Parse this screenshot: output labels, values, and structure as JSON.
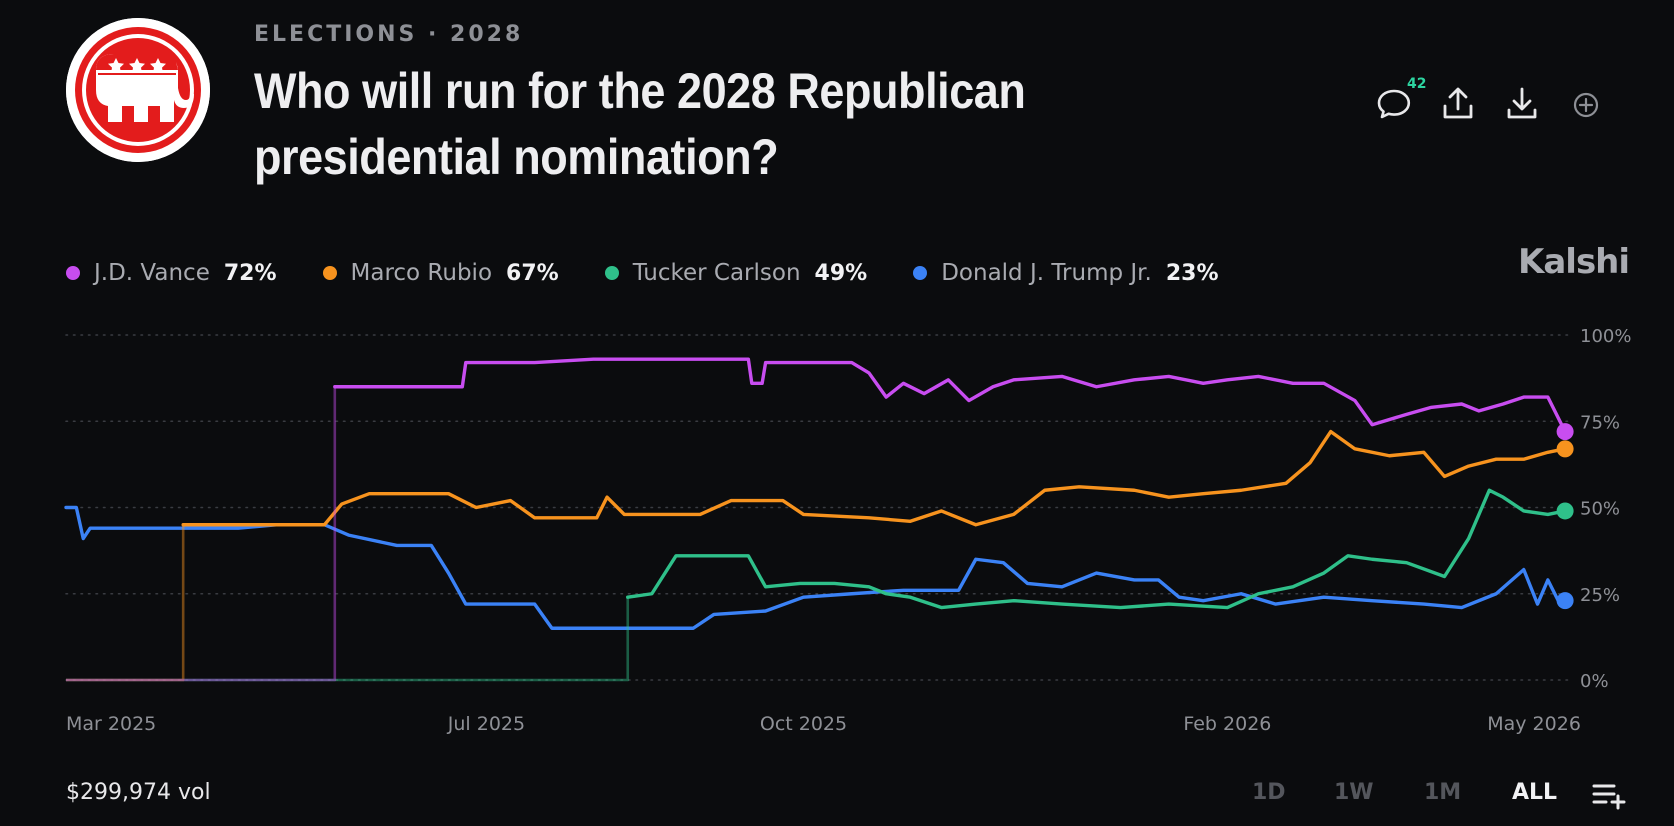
{
  "header": {
    "kicker": "ELECTIONS · 2028",
    "title": "Who will run for the 2028 Republican presidential nomination?",
    "comment_count": "42"
  },
  "icons": [
    "republican-elephant-logo",
    "comment-icon",
    "share-icon",
    "download-icon",
    "add-icon",
    "list-add-icon"
  ],
  "brand": "Kalshi",
  "legend": [
    {
      "name": "J.D. Vance",
      "value": "72%",
      "color": "#c84df0"
    },
    {
      "name": "Marco Rubio",
      "value": "67%",
      "color": "#f7931e"
    },
    {
      "name": "Tucker Carlson",
      "value": "49%",
      "color": "#2fc08a"
    },
    {
      "name": "Donald J. Trump Jr.",
      "value": "23%",
      "color": "#3b82f6"
    }
  ],
  "footer": {
    "volume": "$299,974 vol",
    "ranges": [
      "1D",
      "1W",
      "1M",
      "ALL"
    ],
    "active_range": "ALL"
  },
  "chart_data": {
    "type": "line",
    "y_ticks": [
      "100%",
      "75%",
      "50%",
      "25%",
      "0%"
    ],
    "ylim": [
      0,
      100
    ],
    "x_ticks": [
      {
        "label": "Mar 2025",
        "date": "2025-03-01"
      },
      {
        "label": "Jul 2025",
        "date": "2025-07-01"
      },
      {
        "label": "Oct 2025",
        "date": "2025-10-01"
      },
      {
        "label": "Feb 2026",
        "date": "2026-02-01"
      },
      {
        "label": "May 2026",
        "date": "2026-05-01"
      }
    ],
    "x_range": [
      "2025-03-01",
      "2026-05-12"
    ],
    "grid": true,
    "series": [
      {
        "name": "J.D. Vance",
        "color": "#c84df0",
        "points": [
          [
            "2025-03-01",
            0
          ],
          [
            "2025-05-18",
            0
          ],
          [
            "2025-05-18",
            85
          ],
          [
            "2025-06-24",
            85
          ],
          [
            "2025-06-25",
            92
          ],
          [
            "2025-07-15",
            92
          ],
          [
            "2025-08-01",
            93
          ],
          [
            "2025-09-10",
            93
          ],
          [
            "2025-09-15",
            93
          ],
          [
            "2025-09-16",
            86
          ],
          [
            "2025-09-19",
            86
          ],
          [
            "2025-09-20",
            92
          ],
          [
            "2025-10-15",
            92
          ],
          [
            "2025-10-20",
            89
          ],
          [
            "2025-10-25",
            82
          ],
          [
            "2025-10-30",
            86
          ],
          [
            "2025-11-05",
            83
          ],
          [
            "2025-11-12",
            87
          ],
          [
            "2025-11-18",
            81
          ],
          [
            "2025-11-25",
            85
          ],
          [
            "2025-12-01",
            87
          ],
          [
            "2025-12-15",
            88
          ],
          [
            "2025-12-25",
            85
          ],
          [
            "2026-01-05",
            87
          ],
          [
            "2026-01-15",
            88
          ],
          [
            "2026-01-25",
            86
          ],
          [
            "2026-02-01",
            87
          ],
          [
            "2026-02-10",
            88
          ],
          [
            "2026-02-20",
            86
          ],
          [
            "2026-03-01",
            86
          ],
          [
            "2026-03-10",
            81
          ],
          [
            "2026-03-15",
            74
          ],
          [
            "2026-03-25",
            77
          ],
          [
            "2026-04-01",
            79
          ],
          [
            "2026-04-10",
            80
          ],
          [
            "2026-04-15",
            78
          ],
          [
            "2026-04-22",
            80
          ],
          [
            "2026-04-28",
            82
          ],
          [
            "2026-05-05",
            82
          ],
          [
            "2026-05-10",
            72
          ]
        ]
      },
      {
        "name": "Marco Rubio",
        "color": "#f7931e",
        "points": [
          [
            "2025-03-01",
            0
          ],
          [
            "2025-04-04",
            0
          ],
          [
            "2025-04-04",
            45
          ],
          [
            "2025-05-15",
            45
          ],
          [
            "2025-05-20",
            51
          ],
          [
            "2025-05-28",
            54
          ],
          [
            "2025-06-20",
            54
          ],
          [
            "2025-06-28",
            50
          ],
          [
            "2025-07-08",
            52
          ],
          [
            "2025-07-15",
            47
          ],
          [
            "2025-08-02",
            47
          ],
          [
            "2025-08-05",
            53
          ],
          [
            "2025-08-10",
            48
          ],
          [
            "2025-09-01",
            48
          ],
          [
            "2025-09-10",
            52
          ],
          [
            "2025-09-25",
            52
          ],
          [
            "2025-10-01",
            48
          ],
          [
            "2025-10-20",
            47
          ],
          [
            "2025-11-01",
            46
          ],
          [
            "2025-11-10",
            49
          ],
          [
            "2025-11-20",
            45
          ],
          [
            "2025-12-01",
            48
          ],
          [
            "2025-12-10",
            55
          ],
          [
            "2025-12-20",
            56
          ],
          [
            "2026-01-05",
            55
          ],
          [
            "2026-01-15",
            53
          ],
          [
            "2026-01-25",
            54
          ],
          [
            "2026-02-05",
            55
          ],
          [
            "2026-02-18",
            57
          ],
          [
            "2026-02-25",
            63
          ],
          [
            "2026-03-03",
            72
          ],
          [
            "2026-03-10",
            67
          ],
          [
            "2026-03-20",
            65
          ],
          [
            "2026-03-30",
            66
          ],
          [
            "2026-04-05",
            59
          ],
          [
            "2026-04-12",
            62
          ],
          [
            "2026-04-20",
            64
          ],
          [
            "2026-04-28",
            64
          ],
          [
            "2026-05-05",
            66
          ],
          [
            "2026-05-10",
            67
          ]
        ]
      },
      {
        "name": "Tucker Carlson",
        "color": "#2fc08a",
        "points": [
          [
            "2025-03-01",
            0
          ],
          [
            "2025-08-11",
            0
          ],
          [
            "2025-08-11",
            24
          ],
          [
            "2025-08-18",
            25
          ],
          [
            "2025-08-25",
            36
          ],
          [
            "2025-09-15",
            36
          ],
          [
            "2025-09-20",
            27
          ],
          [
            "2025-09-30",
            28
          ],
          [
            "2025-10-10",
            28
          ],
          [
            "2025-10-20",
            27
          ],
          [
            "2025-10-25",
            25
          ],
          [
            "2025-11-01",
            24
          ],
          [
            "2025-11-10",
            21
          ],
          [
            "2025-11-20",
            22
          ],
          [
            "2025-12-01",
            23
          ],
          [
            "2025-12-15",
            22
          ],
          [
            "2026-01-01",
            21
          ],
          [
            "2026-01-15",
            22
          ],
          [
            "2026-02-01",
            21
          ],
          [
            "2026-02-10",
            25
          ],
          [
            "2026-02-20",
            27
          ],
          [
            "2026-03-01",
            31
          ],
          [
            "2026-03-08",
            36
          ],
          [
            "2026-03-15",
            35
          ],
          [
            "2026-03-25",
            34
          ],
          [
            "2026-04-05",
            30
          ],
          [
            "2026-04-12",
            41
          ],
          [
            "2026-04-18",
            55
          ],
          [
            "2026-04-22",
            53
          ],
          [
            "2026-04-28",
            49
          ],
          [
            "2026-05-05",
            48
          ],
          [
            "2026-05-10",
            49
          ]
        ]
      },
      {
        "name": "Donald J. Trump Jr.",
        "color": "#3b82f6",
        "points": [
          [
            "2025-03-01",
            50
          ],
          [
            "2025-03-04",
            50
          ],
          [
            "2025-03-06",
            41
          ],
          [
            "2025-03-08",
            44
          ],
          [
            "2025-04-20",
            44
          ],
          [
            "2025-05-01",
            45
          ],
          [
            "2025-05-15",
            45
          ],
          [
            "2025-05-22",
            42
          ],
          [
            "2025-06-05",
            39
          ],
          [
            "2025-06-15",
            39
          ],
          [
            "2025-06-20",
            31
          ],
          [
            "2025-06-25",
            22
          ],
          [
            "2025-07-15",
            22
          ],
          [
            "2025-07-20",
            15
          ],
          [
            "2025-08-15",
            15
          ],
          [
            "2025-08-30",
            15
          ],
          [
            "2025-09-05",
            19
          ],
          [
            "2025-09-20",
            20
          ],
          [
            "2025-10-01",
            24
          ],
          [
            "2025-10-15",
            25
          ],
          [
            "2025-10-30",
            26
          ],
          [
            "2025-11-15",
            26
          ],
          [
            "2025-11-20",
            35
          ],
          [
            "2025-11-28",
            34
          ],
          [
            "2025-12-05",
            28
          ],
          [
            "2025-12-15",
            27
          ],
          [
            "2025-12-25",
            31
          ],
          [
            "2026-01-05",
            29
          ],
          [
            "2026-01-12",
            29
          ],
          [
            "2026-01-18",
            24
          ],
          [
            "2026-01-25",
            23
          ],
          [
            "2026-02-05",
            25
          ],
          [
            "2026-02-15",
            22
          ],
          [
            "2026-03-01",
            24
          ],
          [
            "2026-03-15",
            23
          ],
          [
            "2026-03-30",
            22
          ],
          [
            "2026-04-10",
            21
          ],
          [
            "2026-04-20",
            25
          ],
          [
            "2026-04-28",
            32
          ],
          [
            "2026-05-02",
            22
          ],
          [
            "2026-05-05",
            29
          ],
          [
            "2026-05-08",
            23
          ],
          [
            "2026-05-10",
            23
          ]
        ]
      }
    ]
  }
}
